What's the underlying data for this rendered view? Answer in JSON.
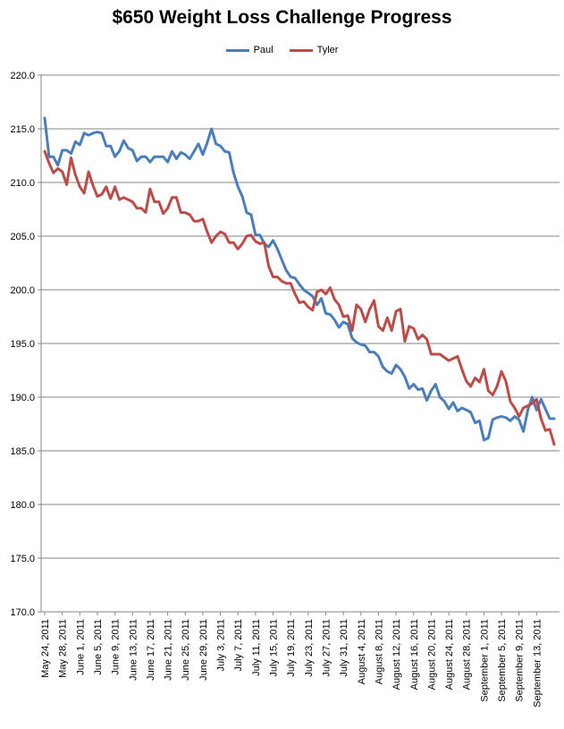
{
  "chart_data": {
    "type": "line",
    "title": "$650 Weight Loss Challenge Progress",
    "xlabel": "",
    "ylabel": "",
    "ylim": [
      170,
      220
    ],
    "yticks": [
      "170.0",
      "175.0",
      "180.0",
      "185.0",
      "190.0",
      "195.0",
      "200.0",
      "205.0",
      "210.0",
      "215.0",
      "220.0"
    ],
    "x_tick_labels": [
      "May 24, 2011",
      "May 28, 2011",
      "June 1, 2011",
      "June 5, 2011",
      "June 9, 2011",
      "June 13, 2011",
      "June 17, 2011",
      "June 21, 2011",
      "June 25, 2011",
      "June 29, 2011",
      "July 3, 2011",
      "July 7, 2011",
      "July 11, 2011",
      "July 15, 2011",
      "July 19, 2011",
      "July 23, 2011",
      "July 27, 2011",
      "July 31, 2011",
      "August 4, 2011",
      "August 8, 2011",
      "August 12, 2011",
      "August 16, 2011",
      "August 20, 2011",
      "August 24, 2011",
      "August 28, 2011",
      "September 1, 2011",
      "September 5, 2011",
      "September 9, 2011",
      "September 13, 2011"
    ],
    "x_start": "May 24, 2011",
    "x_end": "September 17, 2011",
    "grid": true,
    "legend_position": "top",
    "series": [
      {
        "name": "Paul",
        "color": "#4a7ebb",
        "values": [
          216.0,
          212.4,
          212.4,
          211.6,
          213.0,
          213.0,
          212.7,
          213.8,
          213.5,
          214.6,
          214.4,
          214.6,
          214.7,
          214.6,
          213.4,
          213.4,
          212.4,
          212.9,
          213.9,
          213.2,
          213.0,
          212.0,
          212.4,
          212.4,
          211.9,
          212.4,
          212.4,
          212.4,
          211.9,
          212.9,
          212.2,
          212.8,
          212.6,
          212.2,
          212.9,
          213.6,
          212.6,
          213.7,
          215.0,
          213.6,
          213.4,
          212.9,
          212.8,
          210.9,
          209.6,
          208.7,
          207.2,
          207.0,
          205.1,
          205.1,
          204.3,
          204.0,
          204.6,
          203.8,
          202.8,
          201.8,
          201.2,
          201.1,
          200.5,
          200.0,
          199.7,
          199.4,
          198.6,
          199.2,
          197.8,
          197.7,
          197.2,
          196.5,
          197.0,
          196.8,
          195.5,
          195.1,
          194.9,
          194.8,
          194.2,
          194.2,
          193.8,
          192.8,
          192.4,
          192.2,
          193.0,
          192.6,
          191.9,
          190.8,
          191.2,
          190.7,
          190.8,
          189.7,
          190.6,
          191.2,
          190.0,
          189.6,
          188.9,
          189.5,
          188.7,
          189.0,
          188.8,
          188.6,
          187.6,
          187.8,
          186.0,
          186.2,
          187.9,
          188.1,
          188.2,
          188.1,
          187.8,
          188.2,
          187.9,
          186.8,
          188.8,
          190.0,
          188.8,
          189.8,
          188.9,
          188.0,
          188.0
        ]
      },
      {
        "name": "Tyler",
        "color": "#be4b48",
        "values": [
          212.9,
          211.8,
          210.9,
          211.3,
          211.0,
          209.8,
          212.3,
          210.7,
          209.6,
          209.0,
          211.0,
          209.7,
          208.7,
          208.9,
          209.6,
          208.5,
          209.6,
          208.4,
          208.6,
          208.4,
          208.2,
          207.6,
          207.6,
          207.2,
          209.4,
          208.2,
          208.2,
          207.1,
          207.6,
          208.6,
          208.6,
          207.2,
          207.2,
          207.0,
          206.4,
          206.4,
          206.6,
          205.4,
          204.4,
          205.0,
          205.4,
          205.2,
          204.4,
          204.4,
          203.8,
          204.3,
          205.0,
          205.1,
          204.5,
          204.3,
          204.4,
          202.2,
          201.2,
          201.2,
          200.8,
          200.6,
          200.6,
          199.6,
          198.8,
          198.9,
          198.4,
          198.1,
          199.8,
          200.0,
          199.6,
          200.2,
          199.1,
          198.6,
          197.5,
          197.6,
          196.2,
          198.6,
          198.2,
          197.0,
          198.2,
          199.0,
          196.6,
          196.2,
          197.4,
          196.2,
          198.0,
          198.2,
          195.2,
          196.6,
          196.4,
          195.4,
          195.8,
          195.4,
          194.0,
          194.0,
          194.0,
          193.7,
          193.4,
          193.6,
          193.8,
          192.6,
          191.5,
          191.0,
          191.8,
          191.4,
          192.6,
          190.6,
          190.2,
          191.0,
          192.4,
          191.5,
          189.6,
          189.0,
          188.2,
          189.0,
          189.2,
          189.4,
          189.8,
          188.0,
          186.9,
          187.0,
          185.6
        ]
      }
    ]
  }
}
